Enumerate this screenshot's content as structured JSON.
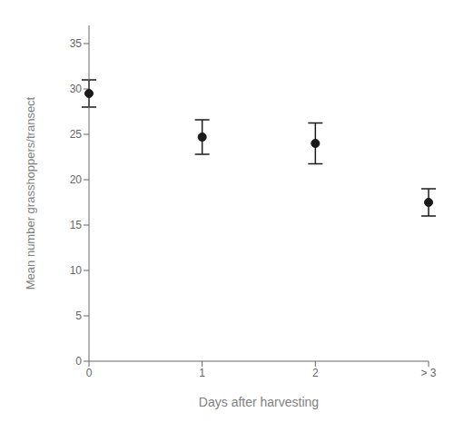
{
  "chart_data": {
    "type": "scatter",
    "categories": [
      "0",
      "1",
      "2",
      "> 3"
    ],
    "values": [
      29.5,
      24.7,
      24.0,
      17.5
    ],
    "errors": [
      1.5,
      1.9,
      2.25,
      1.5
    ],
    "xlabel": "Days after harvesting",
    "ylabel": "Mean number grasshoppers/transect",
    "ylim": [
      0,
      37
    ],
    "yticks": [
      0,
      5,
      10,
      15,
      20,
      25,
      30,
      35
    ],
    "color": "#1a1a1a",
    "marker": "circle",
    "grid": false
  }
}
